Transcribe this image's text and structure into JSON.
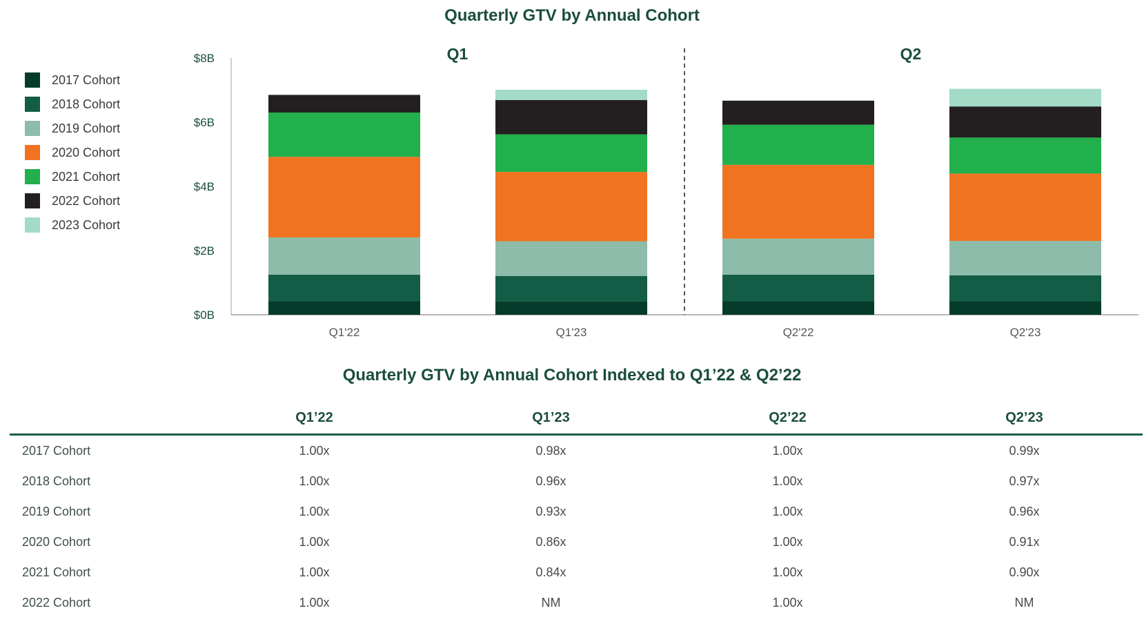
{
  "chart_data": [
    {
      "type": "bar",
      "stacked": true,
      "title": "Quarterly GTV by Annual Cohort",
      "groups": [
        {
          "label": "Q1",
          "categories": [
            "Q1'22",
            "Q1'23"
          ]
        },
        {
          "label": "Q2",
          "categories": [
            "Q2'22",
            "Q2'23"
          ]
        }
      ],
      "categories": [
        "Q1'22",
        "Q1'23",
        "Q2'22",
        "Q2'23"
      ],
      "ylim": [
        0,
        8
      ],
      "yticks": [
        0,
        2,
        4,
        6,
        8
      ],
      "ytick_labels": [
        "$0B",
        "$2B",
        "$4B",
        "$6B",
        "$8B"
      ],
      "legend_position": "left",
      "grid": false,
      "series": [
        {
          "name": "2017 Cohort",
          "color": "#053b2a",
          "values": [
            0.42,
            0.41,
            0.42,
            0.42
          ]
        },
        {
          "name": "2018 Cohort",
          "color": "#135c45",
          "values": [
            0.83,
            0.8,
            0.83,
            0.81
          ]
        },
        {
          "name": "2019 Cohort",
          "color": "#8ebcaa",
          "values": [
            1.16,
            1.08,
            1.12,
            1.07
          ]
        },
        {
          "name": "2020 Cohort",
          "color": "#f07321",
          "values": [
            2.51,
            2.16,
            2.3,
            2.1
          ]
        },
        {
          "name": "2021 Cohort",
          "color": "#21b04b",
          "values": [
            1.38,
            1.17,
            1.25,
            1.12
          ]
        },
        {
          "name": "2022 Cohort",
          "color": "#231f20",
          "values": [
            0.55,
            1.07,
            0.75,
            0.97
          ]
        },
        {
          "name": "2023 Cohort",
          "color": "#a3dbc7",
          "values": [
            0,
            0.32,
            0,
            0.55
          ]
        }
      ]
    },
    {
      "type": "table",
      "title": "Quarterly GTV by Annual Cohort Indexed to Q1’22 & Q2’22",
      "columns": [
        "Q1’22",
        "Q1’23",
        "Q2’22",
        "Q2’23"
      ],
      "rows": [
        {
          "label": "2017 Cohort",
          "values": [
            "1.00x",
            "0.98x",
            "1.00x",
            "0.99x"
          ]
        },
        {
          "label": "2018 Cohort",
          "values": [
            "1.00x",
            "0.96x",
            "1.00x",
            "0.97x"
          ]
        },
        {
          "label": "2019 Cohort",
          "values": [
            "1.00x",
            "0.93x",
            "1.00x",
            "0.96x"
          ]
        },
        {
          "label": "2020 Cohort",
          "values": [
            "1.00x",
            "0.86x",
            "1.00x",
            "0.91x"
          ]
        },
        {
          "label": "2021 Cohort",
          "values": [
            "1.00x",
            "0.84x",
            "1.00x",
            "0.90x"
          ]
        },
        {
          "label": "2022 Cohort",
          "values": [
            "1.00x",
            "NM",
            "1.00x",
            "NM"
          ]
        }
      ]
    }
  ]
}
